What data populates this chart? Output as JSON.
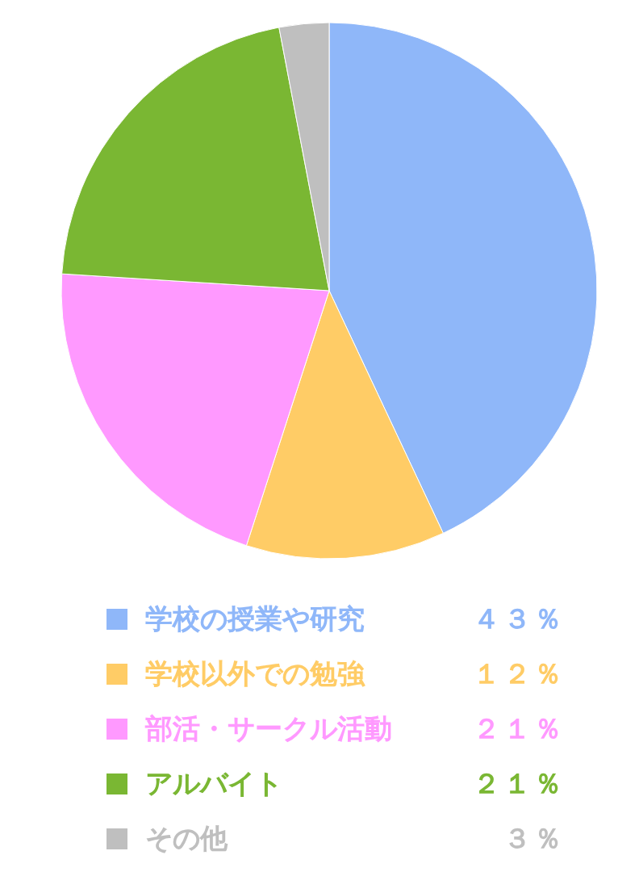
{
  "chart_data": {
    "type": "pie",
    "categories": [
      "学校の授業や研究",
      "学校以外での勉強",
      "部活・サークル活動",
      "アルバイト",
      "その他"
    ],
    "values": [
      43,
      12,
      21,
      21,
      3
    ],
    "colors": [
      "#8fb7f9",
      "#ffcc66",
      "#ff99ff",
      "#7ab733",
      "#bfbfbf"
    ],
    "value_labels": [
      "４３％",
      "１２％",
      "２１％",
      "２１％",
      "３％"
    ],
    "legend": "bottom"
  }
}
